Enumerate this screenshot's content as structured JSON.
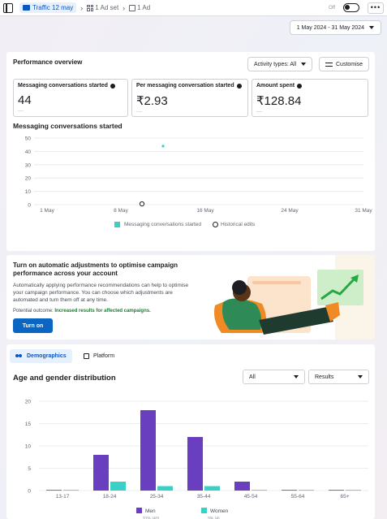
{
  "breadcrumb": {
    "campaign": "Traffic 12 may",
    "adset": "1 Ad set",
    "ad": "1 Ad"
  },
  "topbar": {
    "status": "Off",
    "more": "•••"
  },
  "date_range": "1 May 2024 - 31 May 2024",
  "performance": {
    "title": "Performance overview",
    "activity_types": "Activity types: All",
    "customise": "Customise",
    "metrics": [
      {
        "label": "Messaging conversations started",
        "value": "44",
        "sub": "—"
      },
      {
        "label": "Per messaging conversation started",
        "value": "₹2.93",
        "sub": "—"
      },
      {
        "label": "Amount spent",
        "value": "₹128.84",
        "sub": "—"
      }
    ],
    "chart_title": "Messaging conversations started",
    "legend_series": "Messaging conversations started",
    "legend_history": "Historical edits"
  },
  "chart_data": [
    {
      "type": "scatter",
      "title": "Messaging conversations started",
      "y_ticks": [
        0,
        10,
        20,
        30,
        40,
        50
      ],
      "ylim": [
        0,
        50
      ],
      "x_ticks": [
        "1 May",
        "8 May",
        "16 May",
        "24 May",
        "31 May"
      ],
      "series": [
        {
          "name": "Messaging conversations started",
          "x": [
            "12 May"
          ],
          "values": [
            44
          ]
        }
      ],
      "historical_edits": [
        "10 May"
      ],
      "grid": true,
      "legend": "bottom",
      "colors": {
        "series": "#3ad0c6"
      }
    },
    {
      "type": "bar",
      "title": "Age and gender distribution",
      "categories": [
        "13-17",
        "18-24",
        "25-34",
        "35-44",
        "45-54",
        "55-64",
        "65+"
      ],
      "y_ticks": [
        0,
        5,
        10,
        15,
        20
      ],
      "ylim": [
        0,
        20
      ],
      "series": [
        {
          "name": "Men",
          "values": [
            0,
            8,
            18,
            12,
            2,
            0,
            0
          ],
          "color": "#6a3fbf"
        },
        {
          "name": "Women",
          "values": [
            0,
            2,
            1,
            1,
            0,
            0,
            0
          ],
          "color": "#3ad0c6"
        }
      ],
      "legend_sub": [
        "91% (40)",
        "9% (4)"
      ],
      "grid": true,
      "legend": "bottom"
    }
  ],
  "recommendation": {
    "title": "Turn on automatic adjustments to optimise campaign performance across your account",
    "body": "Automatically applying performance recommendations can help to optimise your campaign performance. You can choose which adjustments are automated and turn them off at any time.",
    "outcome_label": "Potential outcome:",
    "outcome_value": "Increased results for affected campaigns.",
    "button": "Turn on"
  },
  "demographics": {
    "tab_demographics": "Demographics",
    "tab_platform": "Platform",
    "title": "Age and gender distribution",
    "filter_all": "All",
    "filter_results": "Results"
  }
}
